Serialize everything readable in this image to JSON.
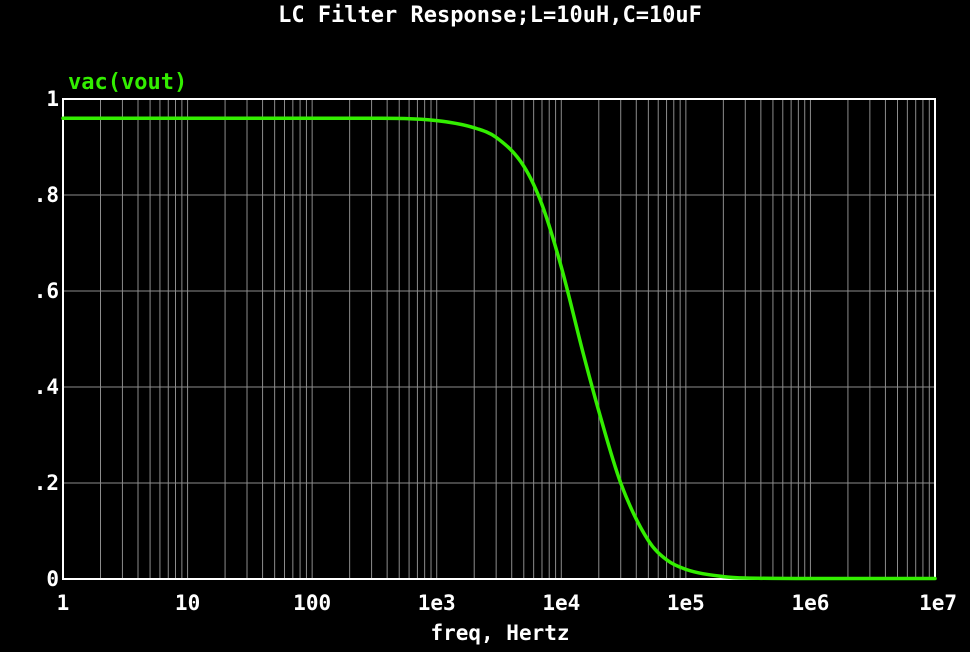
{
  "chart_data": {
    "type": "line",
    "title": "LC Filter Response;L=10uH,C=10uF",
    "xlabel": "freq, Hertz",
    "ylabel": "",
    "x_scale": "log",
    "xlim": [
      1,
      10000000
    ],
    "ylim": [
      0,
      1
    ],
    "grid": true,
    "x_ticks": [
      1,
      10,
      100,
      1000,
      10000,
      100000,
      1000000,
      10000000
    ],
    "x_tick_labels": [
      "1",
      "10",
      "100",
      "1e3",
      "1e4",
      "1e5",
      "1e6",
      "1e7"
    ],
    "y_ticks": [
      0,
      0.2,
      0.4,
      0.6,
      0.8,
      1
    ],
    "y_tick_labels": [
      "0",
      ".2",
      ".4",
      ".6",
      ".8",
      "1"
    ],
    "legend_position": "top-left",
    "series": [
      {
        "name": "vac(vout)",
        "color": "#33ee00",
        "x": [
          1,
          10,
          100,
          300,
          1000,
          2000,
          3000,
          5000,
          7000,
          10000,
          15000,
          20000,
          30000,
          50000,
          70000,
          100000,
          200000,
          300000,
          1000000,
          10000000
        ],
        "y": [
          0.96,
          0.96,
          0.96,
          0.96,
          0.955,
          0.94,
          0.92,
          0.86,
          0.78,
          0.65,
          0.47,
          0.35,
          0.2,
          0.08,
          0.04,
          0.02,
          0.005,
          0.002,
          0.001,
          0.001
        ]
      }
    ]
  },
  "colors": {
    "background": "#000000",
    "text": "#ffffff",
    "frame": "#ffffff",
    "grid": "#8c8c8c"
  }
}
